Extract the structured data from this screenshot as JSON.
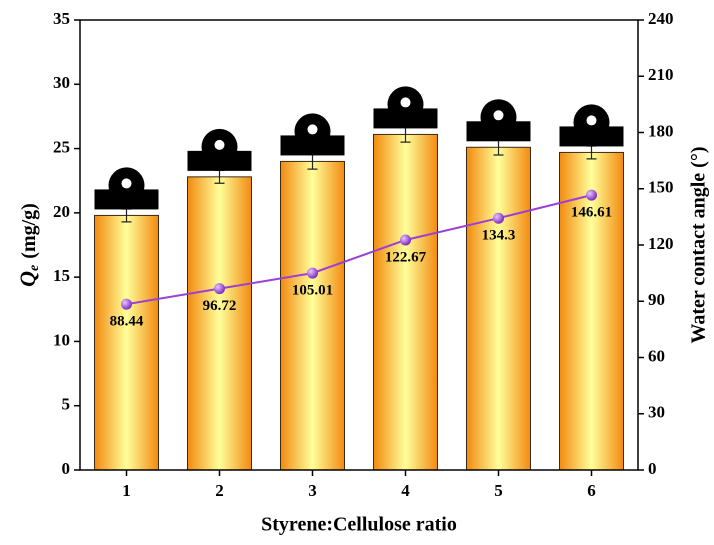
{
  "chart_data": {
    "type": "bar-line",
    "xlabel": "Styrene:Cellulose ratio",
    "ylabel_symbol": "Q",
    "ylabel_subscript": "e",
    "ylabel_unit": "(mg/g)",
    "y2label": "Water contact angle (°)",
    "categories": [
      "1",
      "2",
      "3",
      "4",
      "5",
      "6"
    ],
    "series": [
      {
        "color": "#f29a1a",
        "values": [
          19.8,
          22.8,
          24.0,
          26.1,
          25.1,
          24.7
        ],
        "errors": [
          0.5,
          0.5,
          0.6,
          0.6,
          0.6,
          0.5
        ]
      },
      {
        "axis": "y2",
        "color": "#9b3fd6",
        "values": [
          88.44,
          96.72,
          105.01,
          122.67,
          134.3,
          146.61
        ]
      }
    ],
    "ylim": [
      0,
      35
    ],
    "yticks": [
      0,
      5,
      10,
      15,
      20,
      25,
      30,
      35
    ],
    "y2lim": [
      0,
      240
    ],
    "y2ticks": [
      0,
      30,
      60,
      90,
      120,
      150,
      180,
      210,
      240
    ]
  }
}
